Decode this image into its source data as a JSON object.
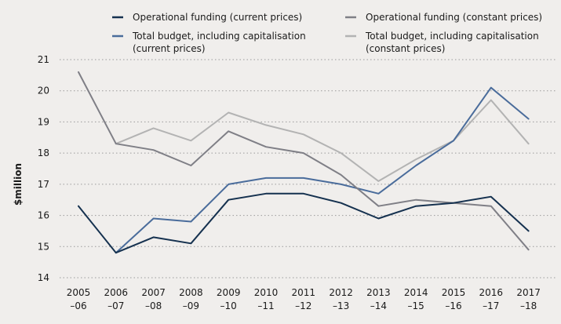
{
  "chart_data": {
    "type": "line",
    "title": "",
    "xlabel": "",
    "ylabel": "$million",
    "ylim": [
      14,
      21
    ],
    "yticks": [
      14,
      15,
      16,
      17,
      18,
      19,
      20,
      21
    ],
    "grid": true,
    "legend_position": "top",
    "categories": [
      [
        "2005",
        "–06"
      ],
      [
        "2006",
        "–07"
      ],
      [
        "2007",
        "–08"
      ],
      [
        "2008",
        "–09"
      ],
      [
        "2009",
        "–10"
      ],
      [
        "2010",
        "–11"
      ],
      [
        "2011",
        "–12"
      ],
      [
        "2012",
        "–13"
      ],
      [
        "2013",
        "–14"
      ],
      [
        "2014",
        "–15"
      ],
      [
        "2015",
        "–16"
      ],
      [
        "2016",
        "–17"
      ],
      [
        "2017",
        "–18"
      ]
    ],
    "series": [
      {
        "name": "Operational funding (current prices)",
        "label_lines": [
          "Operational funding (current prices)"
        ],
        "color": "#15314f",
        "values": [
          16.3,
          14.8,
          15.3,
          15.1,
          16.5,
          16.7,
          16.7,
          16.4,
          15.9,
          16.3,
          16.4,
          16.6,
          15.5
        ]
      },
      {
        "name": "Operational funding (constant prices)",
        "label_lines": [
          "Operational funding (constant prices)"
        ],
        "color": "#7f7f86",
        "values": [
          20.6,
          18.3,
          18.1,
          17.6,
          18.7,
          18.2,
          18.0,
          17.3,
          16.3,
          16.5,
          16.4,
          16.3,
          14.9
        ]
      },
      {
        "name": "Total budget, including capitalisation (current prices)",
        "label_lines": [
          "Total budget, including capitalisation",
          "(current prices)"
        ],
        "color": "#4a6c9b",
        "values": [
          null,
          14.8,
          15.9,
          15.8,
          17.0,
          17.2,
          17.2,
          17.0,
          16.7,
          17.6,
          18.4,
          20.1,
          19.1
        ]
      },
      {
        "name": "Total budget, including capitalisation (constant prices)",
        "label_lines": [
          "Total budget, including capitalisation",
          "(constant prices)"
        ],
        "color": "#b3b3b3",
        "values": [
          null,
          18.3,
          18.8,
          18.4,
          19.3,
          18.9,
          18.6,
          18.0,
          17.1,
          17.8,
          18.4,
          19.7,
          18.3
        ]
      }
    ]
  }
}
